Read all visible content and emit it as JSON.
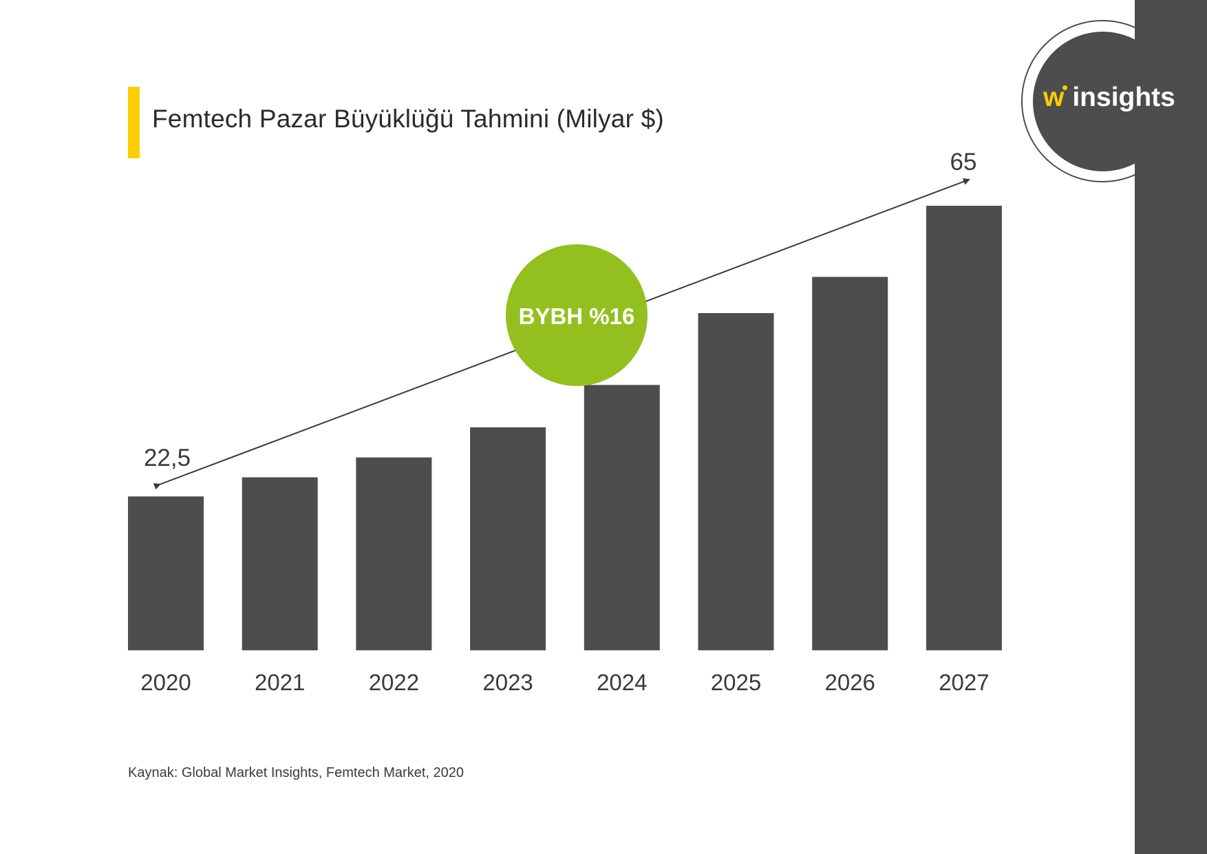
{
  "title": "Femtech Pazar Büyüklüğü Tahmini (Milyar $)",
  "source": "Kaynak: Global Market Insights, Femtech Market, 2020",
  "logo": {
    "w": "w",
    "brand": "insights"
  },
  "badge": {
    "text": "BYBH %16"
  },
  "colors": {
    "bar": "#4d4d4d",
    "accent_yellow": "#fccd00",
    "badge_green": "#93c01f",
    "panel": "#4d4d4d",
    "text": "#3a3a3a"
  },
  "chart_data": {
    "type": "bar",
    "title": "Femtech Pazar Büyüklüğü Tahmini (Milyar $)",
    "xlabel": "",
    "ylabel": "",
    "categories": [
      "2020",
      "2021",
      "2022",
      "2023",
      "2024",
      "2025",
      "2026",
      "2027"
    ],
    "values": [
      22.5,
      25.3,
      28.2,
      32.6,
      38.8,
      49.3,
      54.6,
      65
    ],
    "ylim": [
      0,
      65
    ],
    "grid": false,
    "data_labels": [
      {
        "category": "2020",
        "text": "22,5"
      },
      {
        "category": "2027",
        "text": "65"
      }
    ]
  }
}
